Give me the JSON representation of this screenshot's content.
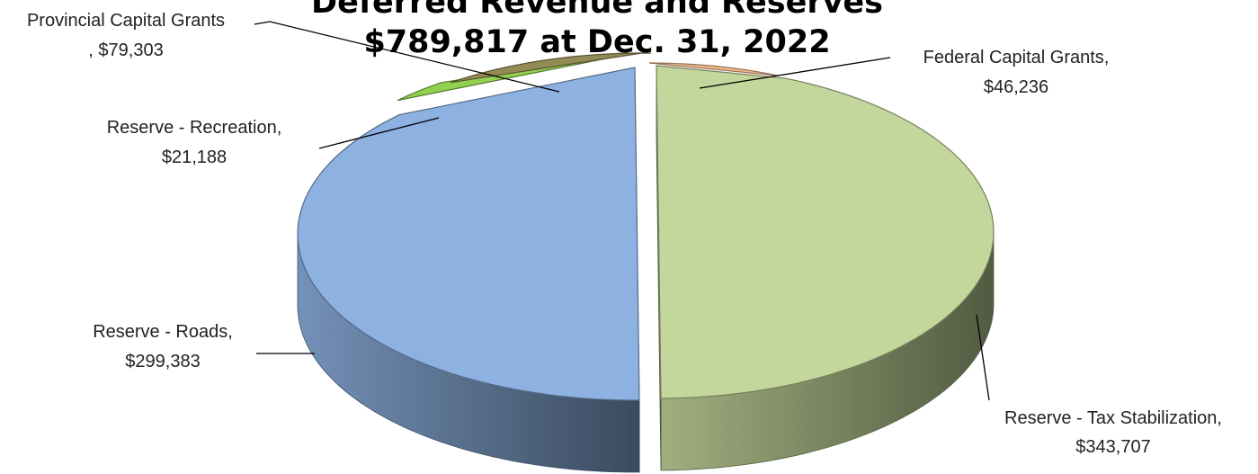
{
  "chart_data": {
    "type": "pie",
    "title": "Deferred Revenue and Reserves",
    "subtitle": "$789,817 at Dec. 31, 2022",
    "currency_prefix": "$",
    "legend": "none",
    "slices": [
      {
        "category": "Federal Capital Grants",
        "value": 46236,
        "color": "#F4B98A"
      },
      {
        "category": "Reserve - Tax Stabilization",
        "value": 343707,
        "color": "#C3D69B"
      },
      {
        "category": "Reserve - Roads",
        "value": 299383,
        "color": "#8DB1E0"
      },
      {
        "category": "Reserve - Recreation",
        "value": 21188,
        "color": "#92D050"
      },
      {
        "category": "Provincial Capital Grants",
        "value": 79303,
        "color": "#948A54"
      }
    ]
  },
  "labels": [
    {
      "line1": "Federal Capital Grants,",
      "line2": "$46,236"
    },
    {
      "line1": "Reserve - Tax Stabilization,",
      "line2": "$343,707"
    },
    {
      "line1": "Reserve - Roads,",
      "line2": "$299,383"
    },
    {
      "line1": "Reserve - Recreation,",
      "line2": "$21,188"
    },
    {
      "line1": "Provincial Capital Grants",
      "line2": ", $79,303"
    }
  ]
}
